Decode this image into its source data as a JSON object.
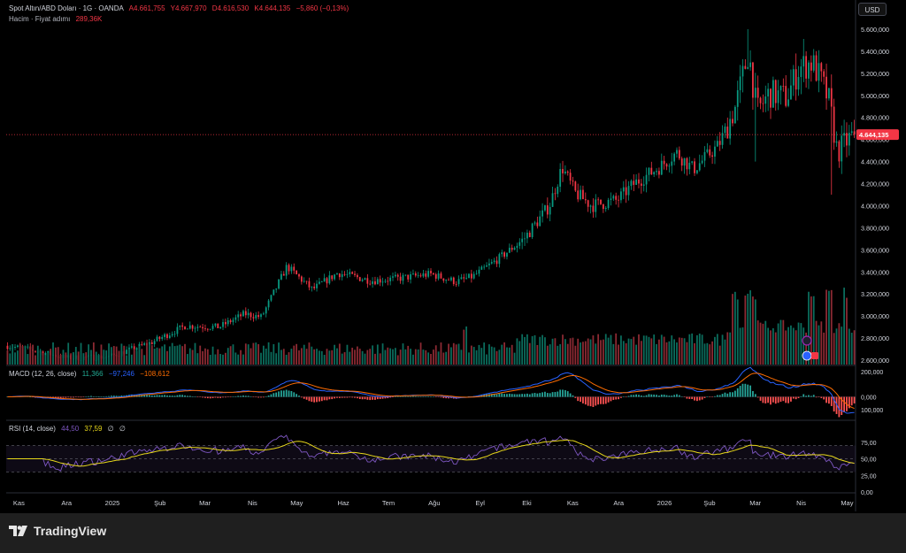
{
  "header": {
    "symbol_line": "Spot Altın/ABD Doları · 1G · OANDA",
    "open": "A4.661,755",
    "high": "Y4.667,970",
    "low": "D4.616,530",
    "close": "K4.644,135",
    "change": "−5,860 (−0,13%)",
    "volume_label": "Hacim · Fiyat adımı",
    "volume_value": "289,36K"
  },
  "currency_button": "USD",
  "price_tag": "4.644,135",
  "macd": {
    "label": "MACD (12, 26, close)",
    "v1": "11,366",
    "v2": "−97,246",
    "v3": "−108,612",
    "axis_labels": [
      "200,000",
      "0,000",
      "100,000"
    ]
  },
  "rsi": {
    "label": "RSI (14, close)",
    "v1": "44,50",
    "v2": "37,59",
    "v3": "∅",
    "v4": "∅",
    "axis_labels": [
      "75,00",
      "50,00",
      "25,00",
      "0,00"
    ]
  },
  "footer": {
    "brand": "TradingView"
  },
  "colors": {
    "up": "#089981",
    "down": "#f23645",
    "bg": "#000000",
    "macd": "#2962ff",
    "signal": "#ff6d00",
    "rsi": "#7e57c2",
    "rsi_ma": "#e7d71b"
  },
  "chart_data": {
    "type": "candlestick",
    "price_axis": [
      "5.600,000",
      "5.400,000",
      "5.200,000",
      "5.000,000",
      "4.800,000",
      "4.600,000",
      "4.400,000",
      "4.200,000",
      "4.000,000",
      "3.800,000",
      "3.600,000",
      "3.400,000",
      "3.200,000",
      "3.000,000",
      "2.800,000",
      "2.600,000"
    ],
    "price_range": [
      2560,
      5640
    ],
    "time_axis": [
      "Kas",
      "Ara",
      "2025",
      "Şub",
      "Mar",
      "Nis",
      "May",
      "Haz",
      "Tem",
      "Ağu",
      "Eyl",
      "Eki",
      "Kas",
      "Ara",
      "2026",
      "Şub",
      "Mar",
      "Nis",
      "May"
    ],
    "last_price": 4644.135,
    "price_anchors": [
      {
        "t": 0.0,
        "p": 2730
      },
      {
        "t": 0.03,
        "p": 2690
      },
      {
        "t": 0.07,
        "p": 2620
      },
      {
        "t": 0.12,
        "p": 2630
      },
      {
        "t": 0.17,
        "p": 2760
      },
      {
        "t": 0.21,
        "p": 2910
      },
      {
        "t": 0.25,
        "p": 2900
      },
      {
        "t": 0.28,
        "p": 3020
      },
      {
        "t": 0.3,
        "p": 2990
      },
      {
        "t": 0.33,
        "p": 3450
      },
      {
        "t": 0.36,
        "p": 3240
      },
      {
        "t": 0.39,
        "p": 3390
      },
      {
        "t": 0.43,
        "p": 3320
      },
      {
        "t": 0.46,
        "p": 3340
      },
      {
        "t": 0.5,
        "p": 3380
      },
      {
        "t": 0.53,
        "p": 3310
      },
      {
        "t": 0.55,
        "p": 3360
      },
      {
        "t": 0.58,
        "p": 3520
      },
      {
        "t": 0.61,
        "p": 3700
      },
      {
        "t": 0.64,
        "p": 4000
      },
      {
        "t": 0.655,
        "p": 4350
      },
      {
        "t": 0.67,
        "p": 4120
      },
      {
        "t": 0.69,
        "p": 4000
      },
      {
        "t": 0.72,
        "p": 4050
      },
      {
        "t": 0.74,
        "p": 4200
      },
      {
        "t": 0.77,
        "p": 4350
      },
      {
        "t": 0.79,
        "p": 4480
      },
      {
        "t": 0.81,
        "p": 4330
      },
      {
        "t": 0.84,
        "p": 4550
      },
      {
        "t": 0.86,
        "p": 4900
      },
      {
        "t": 0.875,
        "p": 5400
      },
      {
        "t": 0.885,
        "p": 4850
      },
      {
        "t": 0.9,
        "p": 5020
      },
      {
        "t": 0.92,
        "p": 4980
      },
      {
        "t": 0.935,
        "p": 5250
      },
      {
        "t": 0.95,
        "p": 5300
      },
      {
        "t": 0.96,
        "p": 5150
      },
      {
        "t": 0.97,
        "p": 4950
      },
      {
        "t": 0.98,
        "p": 4480
      },
      {
        "t": 0.99,
        "p": 4580
      },
      {
        "t": 1.0,
        "p": 4644
      }
    ]
  }
}
